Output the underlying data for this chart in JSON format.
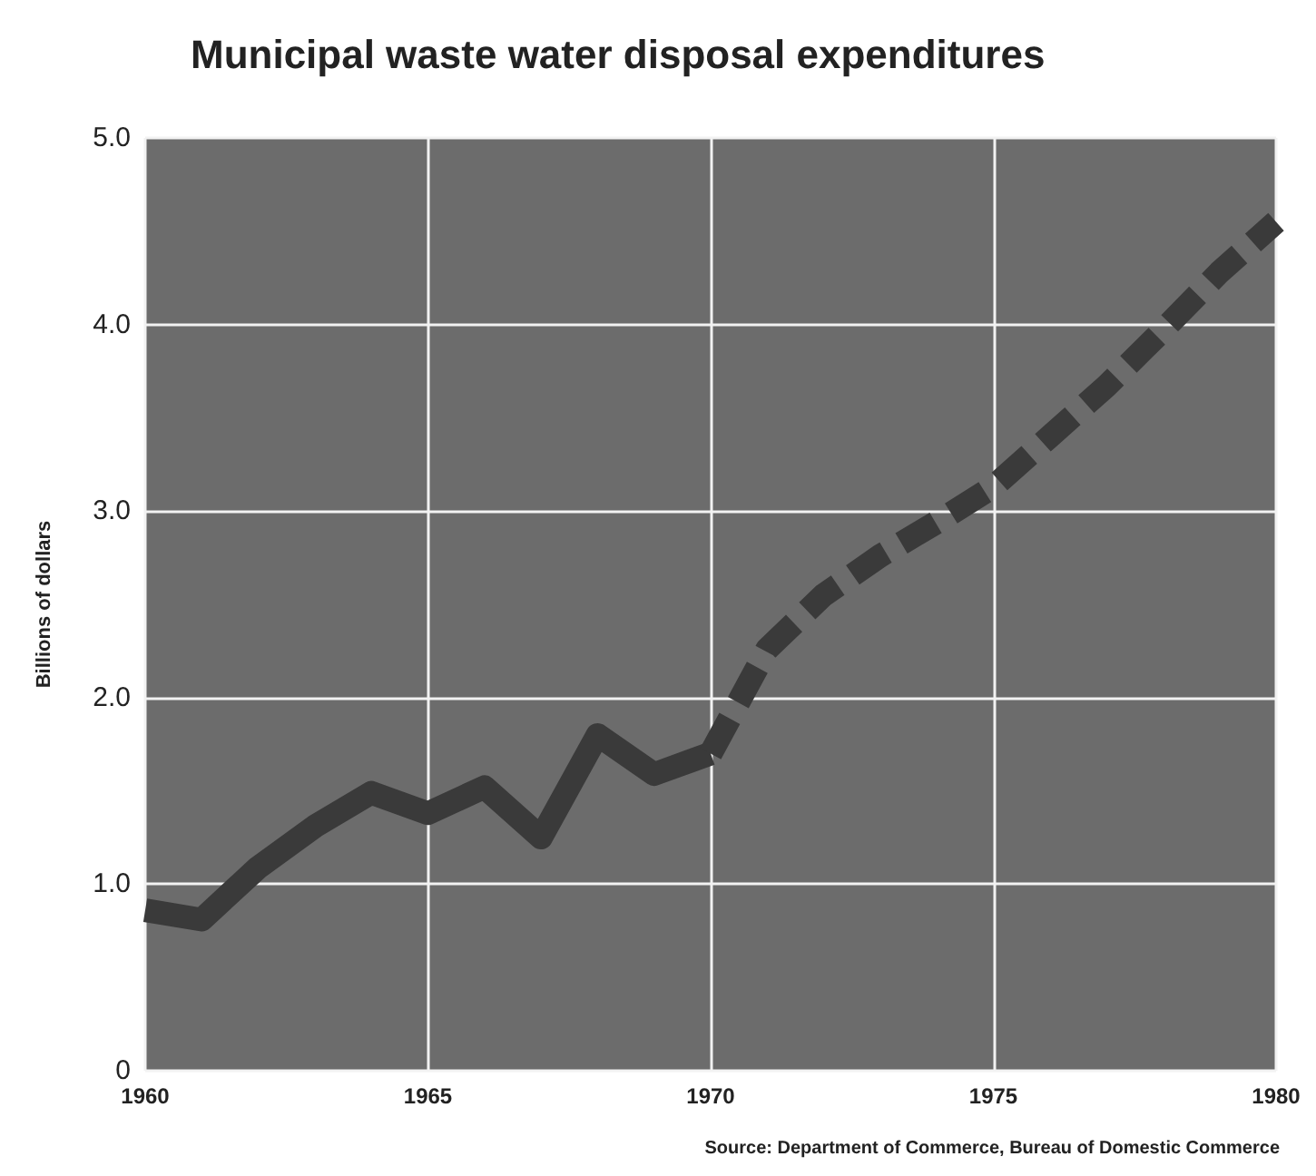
{
  "chart_data": {
    "type": "line",
    "title": "Municipal waste water disposal expenditures",
    "ylabel": "Billions of dollars",
    "annotations": [
      "Source: Department of Commerce, Bureau of Domestic Commerce"
    ],
    "series": [
      {
        "color": "#3a3a3a",
        "line_style": "solid",
        "x": [
          1960,
          1961,
          1962,
          1963,
          1964,
          1965,
          1966,
          1967,
          1968,
          1969,
          1970
        ],
        "values": [
          0.86,
          0.81,
          1.09,
          1.31,
          1.49,
          1.38,
          1.52,
          1.25,
          1.8,
          1.59,
          1.7
        ]
      },
      {
        "color": "#3a3a3a",
        "line_style": "dashed",
        "x": [
          1970,
          1971,
          1972,
          1973,
          1974,
          1975,
          1976,
          1977,
          1978,
          1979,
          1980
        ],
        "values": [
          1.7,
          2.26,
          2.55,
          2.76,
          2.94,
          3.13,
          3.4,
          3.67,
          3.97,
          4.28,
          4.55
        ]
      }
    ],
    "xlim": [
      1960,
      1980
    ],
    "xticks": [
      1960,
      1965,
      1970,
      1975,
      1980
    ],
    "ylim": [
      0,
      5
    ],
    "yticks": [
      0,
      {
        "value": 1,
        "label": "1.0"
      },
      {
        "value": 2,
        "label": "2.0"
      },
      {
        "value": 3,
        "label": "3.0"
      },
      {
        "value": 4,
        "label": "4.0"
      },
      {
        "value": 5,
        "label": "5.0"
      }
    ],
    "grid": true,
    "marker": "none"
  }
}
